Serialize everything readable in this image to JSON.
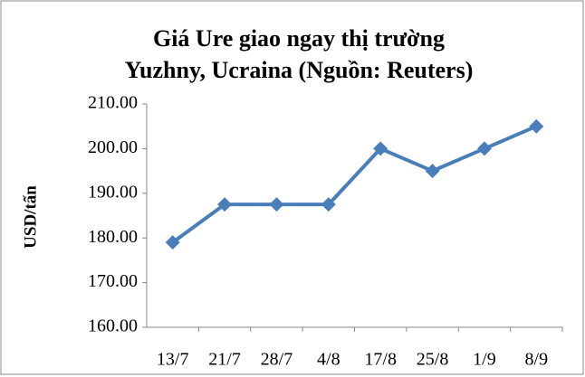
{
  "chart_data": {
    "type": "line",
    "title": [
      "Giá Ure giao ngay thị trường",
      "Yuzhny, Ucraina (Nguồn: Reuters)"
    ],
    "y_label": "USD/tấn",
    "categories": [
      "13/7",
      "21/7",
      "28/7",
      "4/8",
      "17/8",
      "25/8",
      "1/9",
      "8/9"
    ],
    "values": [
      179,
      187.5,
      187.5,
      187.5,
      200,
      195,
      200,
      205
    ],
    "color": "#4a7ebb",
    "ylim": [
      160,
      210
    ],
    "yticks": [
      {
        "value": 160,
        "label": "160.00"
      },
      {
        "value": 170,
        "label": "170.00"
      },
      {
        "value": 180,
        "label": "180.00"
      },
      {
        "value": 190,
        "label": "190.00"
      },
      {
        "value": 200,
        "label": "200.00"
      },
      {
        "value": 210,
        "label": "210.00"
      }
    ],
    "grid": false
  }
}
